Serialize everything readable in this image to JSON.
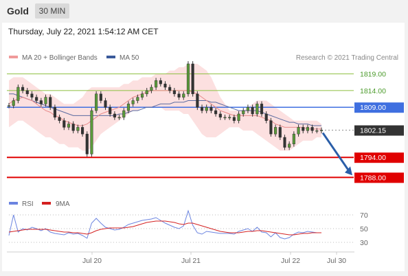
{
  "header": {
    "instrument": "Gold",
    "timeframe": "30 MIN"
  },
  "subtitle": "Thursday, July 22, 2021 1:54:12 AM CET",
  "legend": {
    "ma20_bb": "MA 20 + Bollinger Bands",
    "ma50": "MA 50",
    "credit": "Research © 2021 Trading Central"
  },
  "rsi_legend": {
    "rsi": "RSI",
    "ma9": "9MA"
  },
  "colors": {
    "resistance": "#8dbf3f",
    "pivot": "#3f6fe0",
    "support": "#e00000",
    "bollinger": "#fcdada",
    "ma20": "#e88a8a",
    "ma50": "#5a6aa0",
    "rsi": "#6b84e0",
    "rsi_ma": "#d42020",
    "arrow": "#2a5ea8",
    "last_price": "#333333"
  },
  "chart_data": [
    {
      "type": "line",
      "name": "price",
      "x_labels": [
        "Jul 20",
        "Jul 21",
        "Jul 22",
        "Jul 30"
      ],
      "ylim": [
        1785,
        1822
      ],
      "levels": [
        {
          "label": "1819.00",
          "value": 1819.0,
          "kind": "resistance"
        },
        {
          "label": "1814.00",
          "value": 1814.0,
          "kind": "resistance"
        },
        {
          "label": "1809.00",
          "value": 1809.0,
          "kind": "pivot"
        },
        {
          "label": "1802.15",
          "value": 1802.15,
          "kind": "last"
        },
        {
          "label": "1794.00",
          "value": 1794.0,
          "kind": "support"
        },
        {
          "label": "1788.00",
          "value": 1788.0,
          "kind": "support"
        }
      ],
      "close": [
        1809.5,
        1811,
        1815,
        1814,
        1813,
        1812,
        1811,
        1810,
        1812,
        1809,
        1806,
        1805,
        1803,
        1804,
        1802,
        1803,
        1801,
        1795,
        1808,
        1813,
        1811,
        1809,
        1807,
        1806,
        1806,
        1808,
        1810,
        1811,
        1812,
        1813,
        1814,
        1815,
        1817,
        1816,
        1815,
        1814,
        1813,
        1812,
        1813,
        1822,
        1813,
        1809,
        1808,
        1809,
        1808,
        1807,
        1806,
        1806,
        1806,
        1805,
        1807,
        1808,
        1809,
        1807,
        1810,
        1807,
        1805,
        1801,
        1803,
        1800,
        1797,
        1798,
        1801,
        1803,
        1802,
        1803,
        1802,
        1802,
        1802.15
      ],
      "bb_upper": [
        1817,
        1818,
        1818,
        1818,
        1817,
        1816,
        1815,
        1814,
        1813,
        1813,
        1812,
        1811,
        1810,
        1810,
        1810,
        1811,
        1812,
        1814,
        1815,
        1815,
        1815,
        1815,
        1815,
        1815,
        1815,
        1816,
        1816,
        1817,
        1817,
        1818,
        1818,
        1818,
        1819,
        1819,
        1819,
        1820,
        1820,
        1821,
        1821,
        1822,
        1822,
        1822,
        1821,
        1820,
        1818,
        1815,
        1812,
        1810,
        1808,
        1808,
        1808,
        1808,
        1809,
        1810,
        1811,
        1811,
        1811,
        1810,
        1809,
        1808,
        1807,
        1806,
        1805,
        1805,
        1805,
        1805,
        1805,
        1805,
        1804
      ],
      "bb_lower": [
        1803,
        1804,
        1805,
        1805,
        1804,
        1803,
        1802,
        1801,
        1800,
        1800,
        1799,
        1798,
        1798,
        1797,
        1797,
        1797,
        1796,
        1796,
        1797,
        1799,
        1801,
        1802,
        1803,
        1804,
        1805,
        1806,
        1807,
        1808,
        1808,
        1809,
        1809,
        1809,
        1809,
        1809,
        1808,
        1808,
        1808,
        1808,
        1807,
        1807,
        1805,
        1803,
        1801,
        1800,
        1800,
        1800,
        1801,
        1802,
        1803,
        1803,
        1803,
        1802,
        1802,
        1802,
        1801,
        1800,
        1799,
        1798,
        1797,
        1796,
        1796,
        1796,
        1797,
        1798,
        1799,
        1799,
        1799,
        1800,
        1800
      ],
      "ma20": [
        1810,
        1811,
        1811.5,
        1812,
        1811.5,
        1811,
        1810,
        1809,
        1808,
        1807.5,
        1806.5,
        1806,
        1805,
        1804.5,
        1804,
        1803.5,
        1803.5,
        1804,
        1805,
        1806,
        1807,
        1807.5,
        1808,
        1808.5,
        1809,
        1810,
        1811,
        1812,
        1812.5,
        1813,
        1813.5,
        1814,
        1814,
        1814,
        1814,
        1814,
        1814,
        1814,
        1814,
        1814,
        1813.5,
        1813,
        1812,
        1811,
        1810,
        1809,
        1808,
        1807.5,
        1807,
        1806.5,
        1806.5,
        1806.5,
        1806.5,
        1806.5,
        1806.5,
        1806,
        1805.5,
        1805,
        1804,
        1803.5,
        1803,
        1803,
        1803,
        1803,
        1803,
        1802.5,
        1802.5,
        1802.5,
        1802.5
      ],
      "ma50": [
        1813,
        1813,
        1812.5,
        1812,
        1811.5,
        1811,
        1810.5,
        1810,
        1809.5,
        1809,
        1808.5,
        1808,
        1807.5,
        1807,
        1806.5,
        1806.5,
        1806.5,
        1806.5,
        1806.5,
        1806.5,
        1806.5,
        1806.5,
        1806.5,
        1806.5,
        1807,
        1807,
        1807.5,
        1808,
        1808,
        1808.5,
        1809,
        1809,
        1809.5,
        1810,
        1810,
        1810,
        1810.5,
        1810.5,
        1810.5,
        1811,
        1811,
        1811,
        1811,
        1811,
        1810.5,
        1810.5,
        1810,
        1809.5,
        1809,
        1808.5,
        1808,
        1808,
        1808,
        1808,
        1808,
        1807.5,
        1807,
        1806.5,
        1806,
        1805.5,
        1805,
        1804.5,
        1804.5,
        1804,
        1804,
        1804,
        1803.5,
        1803.5,
        1803.5
      ]
    },
    {
      "type": "line",
      "name": "rsi",
      "ylim": [
        20,
        80
      ],
      "ticks": [
        "70",
        "50",
        "30"
      ],
      "tick_values": [
        70,
        50,
        30
      ],
      "rsi": [
        40,
        70,
        45,
        50,
        48,
        52,
        50,
        47,
        50,
        45,
        43,
        42,
        41,
        44,
        42,
        43,
        40,
        36,
        58,
        65,
        58,
        52,
        50,
        48,
        49,
        52,
        56,
        58,
        60,
        62,
        63,
        64,
        66,
        62,
        58,
        55,
        52,
        50,
        54,
        76,
        55,
        44,
        42,
        46,
        45,
        44,
        43,
        43,
        43,
        42,
        46,
        48,
        50,
        46,
        52,
        45,
        44,
        38,
        44,
        37,
        35,
        37,
        42,
        45,
        44,
        46,
        45,
        44,
        44
      ],
      "rsi_ma": [
        45,
        46,
        47,
        48,
        49,
        49,
        49,
        49,
        49,
        48,
        47,
        46,
        45,
        45,
        44,
        44,
        43,
        42,
        44,
        47,
        49,
        50,
        51,
        51,
        51,
        51,
        52,
        53,
        55,
        57,
        59,
        60,
        61,
        61,
        61,
        60,
        59,
        57,
        56,
        58,
        58,
        56,
        54,
        52,
        50,
        48,
        46,
        45,
        44,
        44,
        44,
        45,
        46,
        46,
        47,
        47,
        46,
        45,
        44,
        43,
        42,
        41,
        41,
        42,
        43,
        43,
        44,
        44,
        44
      ]
    }
  ]
}
